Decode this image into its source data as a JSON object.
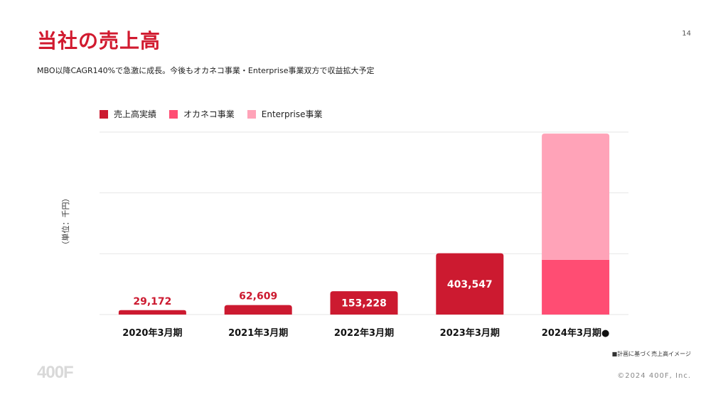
{
  "page": {
    "title": "当社の売上高",
    "page_number": "14",
    "subtitle": "MBO以降CAGR140%で急激に成長。今後もオカネコ事業・Enterprise事業双方で収益拡大予定",
    "note": "■計画に基づく売上高イメージ",
    "logo": "400F",
    "copyright": "©2024 400F, Inc."
  },
  "colors": {
    "actual": "#cc1a30",
    "okaneko": "#ff4d73",
    "enterprise": "#ffa3b8",
    "grid": "#e6e6e6"
  },
  "chart_data": {
    "type": "bar",
    "stacked": true,
    "categories": [
      "2020年3月期",
      "2021年3月期",
      "2022年3月期",
      "2023年3月期",
      "2024年3月期"
    ],
    "category_suffix": [
      "",
      "",
      "",
      "",
      "●"
    ],
    "ylabel": "（単位：千円）",
    "ylim": [
      0,
      1200000
    ],
    "grid": true,
    "legend_position": "top-left",
    "series": [
      {
        "name": "売上高実績",
        "color_key": "actual",
        "values": [
          29172,
          62609,
          153228,
          403547,
          0
        ]
      },
      {
        "name": "オカネコ事業",
        "color_key": "okaneko",
        "values": [
          0,
          0,
          0,
          0,
          360000
        ]
      },
      {
        "name": "Enterprise事業",
        "color_key": "enterprise",
        "values": [
          0,
          0,
          0,
          0,
          830000
        ]
      }
    ],
    "data_labels": [
      "29,172",
      "62,609",
      "153,228",
      "403,547",
      ""
    ]
  }
}
